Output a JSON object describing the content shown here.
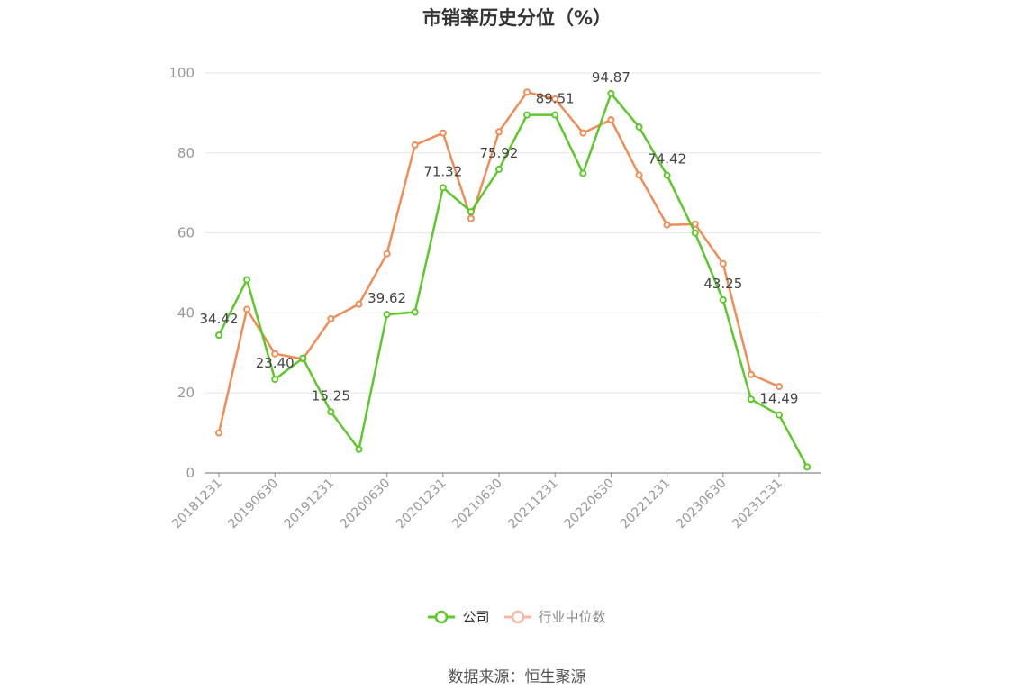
{
  "title": "市销率历史分位（%）",
  "source": "数据来源：恒生聚源",
  "colors": {
    "company": "#5cc82a",
    "industry": "#f08c55",
    "industry_legend": "#f5b8a0",
    "axis": "#999999",
    "grid": "#e6e6e6",
    "label": "#444444"
  },
  "chart_data": {
    "type": "line",
    "title": "市销率历史分位（%）",
    "ylim": [
      0,
      100
    ],
    "yticks": [
      0,
      20,
      40,
      60,
      80,
      100
    ],
    "grid": true,
    "legend_position": "bottom",
    "x_tick_labels": [
      "20181231",
      "20190630",
      "20191231",
      "20200630",
      "20201231",
      "20210630",
      "20211231",
      "20220630",
      "20221231",
      "20230630",
      "20231231"
    ],
    "series": [
      {
        "name": "公司",
        "color": "#5cc82a",
        "values": [
          34.42,
          48.3,
          23.4,
          28.7,
          15.25,
          5.9,
          39.62,
          40.2,
          71.32,
          65.3,
          75.92,
          89.5,
          89.51,
          74.9,
          94.87,
          86.5,
          74.42,
          60.0,
          43.25,
          18.4,
          14.49,
          1.5
        ],
        "labeled_points": [
          {
            "index": 0,
            "text": "34.42"
          },
          {
            "index": 2,
            "text": "23.40"
          },
          {
            "index": 4,
            "text": "15.25"
          },
          {
            "index": 6,
            "text": "39.62"
          },
          {
            "index": 8,
            "text": "71.32"
          },
          {
            "index": 10,
            "text": "75.92"
          },
          {
            "index": 12,
            "text": "89.51"
          },
          {
            "index": 14,
            "text": "94.87"
          },
          {
            "index": 16,
            "text": "74.42"
          },
          {
            "index": 18,
            "text": "43.25"
          },
          {
            "index": 20,
            "text": "14.49"
          }
        ]
      },
      {
        "name": "行业中位数",
        "color": "#f08c55",
        "values": [
          10.0,
          40.9,
          29.8,
          28.5,
          38.5,
          42.2,
          54.8,
          82.0,
          85.0,
          63.6,
          85.3,
          95.2,
          93.5,
          85.0,
          88.3,
          74.5,
          62.0,
          62.2,
          52.3,
          24.6,
          21.6,
          null
        ]
      }
    ]
  }
}
